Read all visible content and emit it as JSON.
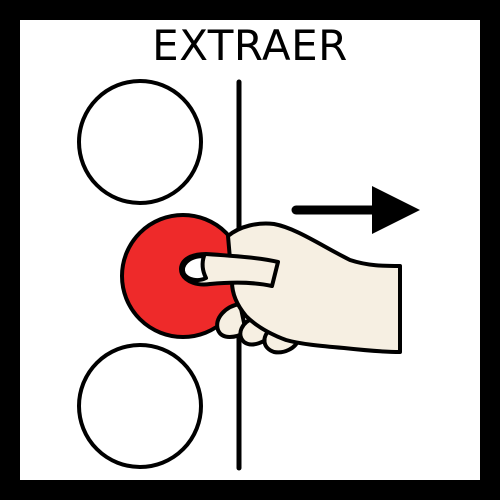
{
  "pictogram": {
    "title": "EXTRAER",
    "colors": {
      "frame": "#000000",
      "background": "#ffffff",
      "highlight_circle": "#ee2a2a",
      "skin": "#f6efe2",
      "outline": "#000000"
    },
    "icons": [
      "empty-circle",
      "red-circle",
      "hand",
      "arrow-right",
      "divider-line"
    ]
  }
}
